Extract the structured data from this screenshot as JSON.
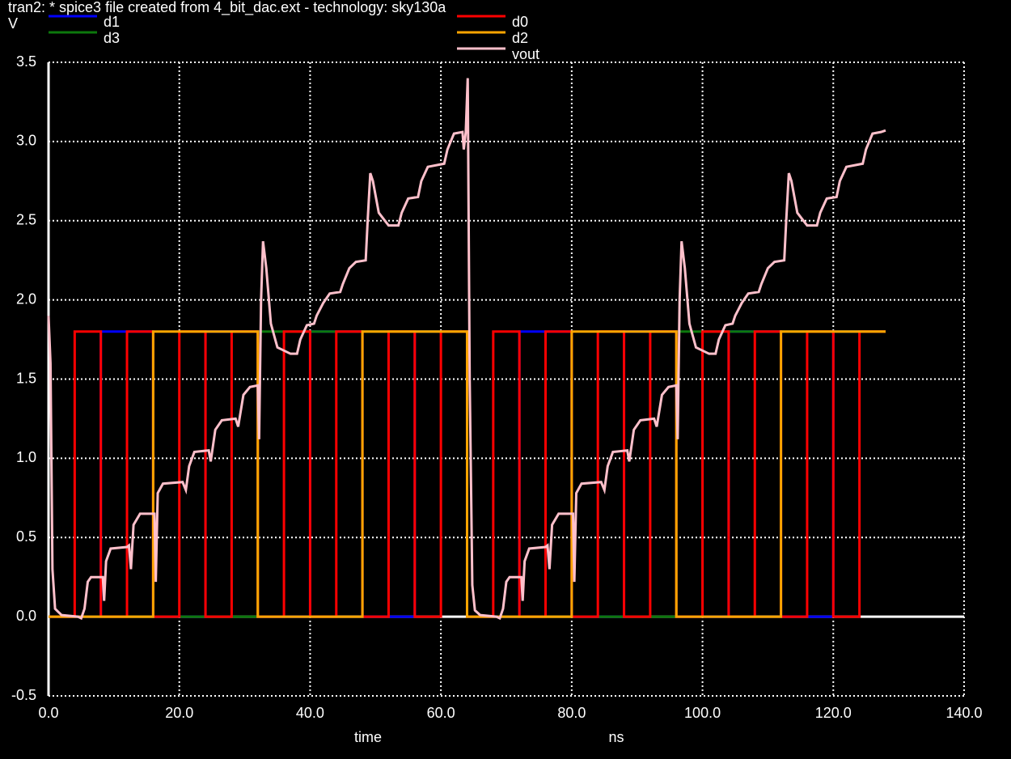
{
  "chart_data": {
    "type": "line",
    "title": "tran2: * spice3 file created from 4_bit_dac.ext - technology: sky130a",
    "y_label": "V",
    "x_label": "time",
    "x_unit": "ns",
    "xlim": [
      0,
      140
    ],
    "ylim": [
      -0.5,
      3.5
    ],
    "xticks": [
      {
        "value": 0,
        "label": "0.0"
      },
      {
        "value": 20,
        "label": "20.0"
      },
      {
        "value": 40,
        "label": "40.0"
      },
      {
        "value": 60,
        "label": "60.0"
      },
      {
        "value": 80,
        "label": "80.0"
      },
      {
        "value": 100,
        "label": "100.0"
      },
      {
        "value": 120,
        "label": "120.0"
      },
      {
        "value": 140,
        "label": "140.0"
      }
    ],
    "yticks": [
      -0.5,
      {
        "value": 0,
        "label": "0.0"
      },
      0.5,
      {
        "value": 1,
        "label": "1.0"
      },
      1.5,
      {
        "value": 2,
        "label": "2.0"
      },
      2.5,
      {
        "value": 3,
        "label": "3.0"
      },
      3.5
    ],
    "grid": true,
    "series": [
      {
        "name": "d1",
        "color": "#0000ff",
        "x": [
          0,
          8,
          8,
          16,
          16,
          24,
          24,
          32,
          32,
          40,
          40,
          48,
          48,
          56,
          56,
          64,
          64,
          72,
          72,
          80,
          80,
          88,
          88,
          96,
          96,
          104,
          104,
          112,
          112,
          120,
          120,
          128
        ],
        "values": [
          0,
          0,
          1.8,
          1.8,
          0,
          0,
          1.8,
          1.8,
          0,
          0,
          1.8,
          1.8,
          0,
          0,
          1.8,
          1.8,
          0,
          0,
          1.8,
          1.8,
          0,
          0,
          1.8,
          1.8,
          0,
          0,
          1.8,
          1.8,
          0,
          0,
          1.8,
          1.8
        ]
      },
      {
        "name": "d3",
        "color": "#0c780c",
        "x": [
          0,
          32,
          32,
          64,
          64,
          96,
          96,
          128
        ],
        "values": [
          0,
          0,
          1.8,
          1.8,
          0,
          0,
          1.8,
          1.8
        ]
      },
      {
        "name": "d0",
        "color": "#ff0000",
        "x": [
          0,
          4,
          4,
          8,
          8,
          12,
          12,
          16,
          16,
          20,
          20,
          24,
          24,
          28,
          28,
          32,
          32,
          36,
          36,
          40,
          40,
          44,
          44,
          48,
          48,
          52,
          52,
          56,
          56,
          60,
          60,
          64,
          64,
          68,
          68,
          72,
          72,
          76,
          76,
          80,
          80,
          84,
          84,
          88,
          88,
          92,
          92,
          96,
          96,
          100,
          100,
          104,
          104,
          108,
          108,
          112,
          112,
          116,
          116,
          120,
          120,
          124,
          124,
          128
        ],
        "values": [
          0,
          0,
          1.8,
          1.8,
          0,
          0,
          1.8,
          1.8,
          0,
          0,
          1.8,
          1.8,
          0,
          0,
          1.8,
          1.8,
          0,
          0,
          1.8,
          1.8,
          0,
          0,
          1.8,
          1.8,
          0,
          0,
          1.8,
          1.8,
          0,
          0,
          1.8,
          1.8,
          0,
          0,
          1.8,
          1.8,
          0,
          0,
          1.8,
          1.8,
          0,
          0,
          1.8,
          1.8,
          0,
          0,
          1.8,
          1.8,
          0,
          0,
          1.8,
          1.8,
          0,
          0,
          1.8,
          1.8,
          0,
          0,
          1.8,
          1.8,
          0,
          0,
          1.8,
          1.8
        ]
      },
      {
        "name": "d2",
        "color": "#ffa500",
        "x": [
          0,
          16,
          16,
          32,
          32,
          48,
          48,
          64,
          64,
          80,
          80,
          96,
          96,
          112,
          112,
          128
        ],
        "values": [
          0,
          0,
          1.8,
          1.8,
          0,
          0,
          1.8,
          1.8,
          0,
          0,
          1.8,
          1.8,
          0,
          0,
          1.8,
          1.8
        ]
      },
      {
        "name": "vout",
        "color": "#ffc0cb",
        "x": [
          0,
          0.3,
          0.6,
          1,
          2,
          4.5,
          5,
          5.5,
          6,
          6.5,
          8,
          8.3,
          8.5,
          8.8,
          9.5,
          12,
          12.3,
          12.6,
          13,
          14,
          16.2,
          16.4,
          16.7,
          17.5,
          20.5,
          21,
          21.5,
          22.3,
          24.5,
          24.8,
          25.5,
          26.5,
          28.6,
          29,
          29.8,
          30.8,
          32,
          32.2,
          32.5,
          32.8,
          33.3,
          34,
          35,
          37,
          38,
          38.5,
          39.5,
          40.6,
          41,
          42,
          43,
          44.6,
          45,
          46,
          47,
          48.5,
          48.8,
          49.2,
          49.6,
          50.5,
          52,
          53.5,
          54,
          55,
          56.5,
          57,
          58,
          60.5,
          61,
          62,
          63.3,
          63.5,
          63.8,
          64.1,
          64.4,
          64.8,
          65.2,
          66,
          68.5,
          69,
          69.5,
          70,
          70.5,
          72,
          72.3,
          72.5,
          72.8,
          73.5,
          76,
          76.3,
          76.6,
          77,
          78,
          80.2,
          80.4,
          80.7,
          81.5,
          84.5,
          85,
          85.5,
          86.3,
          88.5,
          88.8,
          89.5,
          90.5,
          92.6,
          93,
          93.8,
          94.8,
          96,
          96.2,
          96.5,
          96.8,
          97.3,
          98,
          99,
          101,
          102,
          102.5,
          103.5,
          104.6,
          105,
          106,
          107,
          108.6,
          109,
          110,
          111,
          112.5,
          112.8,
          113.2,
          113.6,
          114.5,
          116,
          117.5,
          118,
          119,
          120.5,
          121,
          122,
          124.5,
          125,
          126,
          127.3,
          128
        ],
        "values": [
          1.9,
          1.6,
          0.3,
          0.05,
          0.01,
          0,
          -0.01,
          0.05,
          0.22,
          0.25,
          0.25,
          0.25,
          0.1,
          0.35,
          0.43,
          0.44,
          0.45,
          0.3,
          0.58,
          0.65,
          0.65,
          0.22,
          0.78,
          0.84,
          0.85,
          0.8,
          0.95,
          1.04,
          1.05,
          0.98,
          1.18,
          1.24,
          1.25,
          1.2,
          1.4,
          1.45,
          1.46,
          1.12,
          2,
          2.37,
          2.2,
          1.85,
          1.7,
          1.66,
          1.66,
          1.75,
          1.84,
          1.85,
          1.9,
          1.98,
          2.04,
          2.05,
          2.1,
          2.2,
          2.24,
          2.25,
          2.5,
          2.8,
          2.75,
          2.55,
          2.47,
          2.47,
          2.55,
          2.64,
          2.65,
          2.75,
          2.84,
          2.86,
          2.95,
          3.05,
          3.06,
          2.95,
          3.06,
          3.4,
          1.5,
          0.2,
          0.04,
          0.01,
          0,
          -0.01,
          0.05,
          0.22,
          0.25,
          0.25,
          0.25,
          0.1,
          0.35,
          0.43,
          0.44,
          0.45,
          0.3,
          0.58,
          0.65,
          0.65,
          0.22,
          0.78,
          0.84,
          0.85,
          0.8,
          0.95,
          1.04,
          1.05,
          0.98,
          1.18,
          1.24,
          1.25,
          1.2,
          1.4,
          1.45,
          1.46,
          1.12,
          2,
          2.37,
          2.2,
          1.85,
          1.7,
          1.66,
          1.66,
          1.75,
          1.84,
          1.85,
          1.9,
          1.98,
          2.04,
          2.05,
          2.1,
          2.2,
          2.24,
          2.25,
          2.5,
          2.8,
          2.75,
          2.55,
          2.47,
          2.47,
          2.55,
          2.64,
          2.65,
          2.75,
          2.84,
          2.86,
          2.95,
          3.05,
          3.06,
          3.07
        ]
      }
    ]
  }
}
